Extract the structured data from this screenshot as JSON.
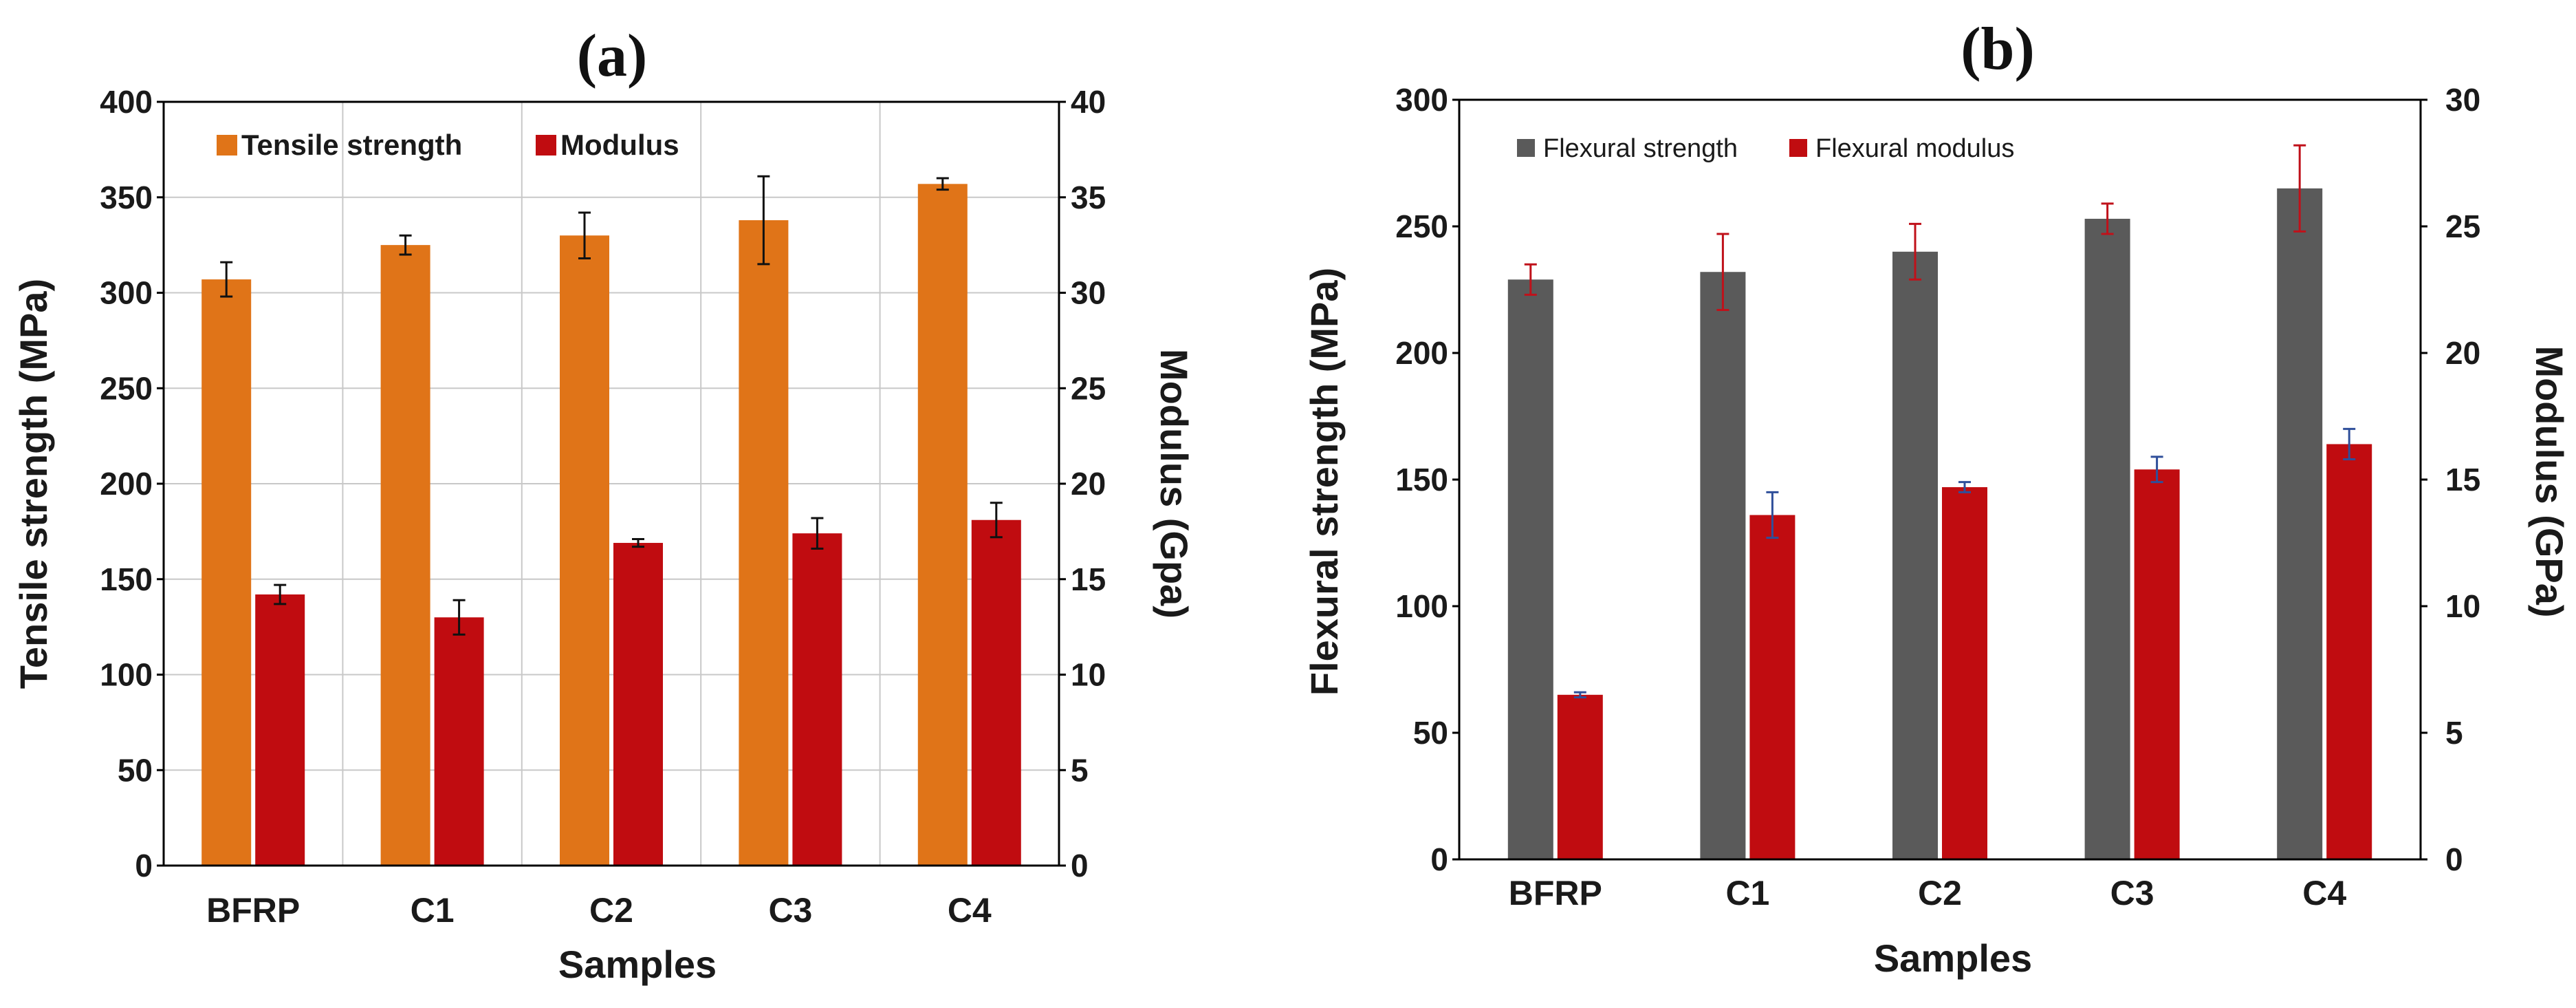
{
  "colors": {
    "tensile": "#e07418",
    "modulus_a": "#c00c10",
    "flexural_strength": "#5a5a5a",
    "flexural_modulus": "#c00c10",
    "err_a": "#111111",
    "err_b_strength": "#c0111a",
    "err_b_modulus": "#2f4f9a",
    "grid": "#c8c8c8",
    "axis": "#000000"
  },
  "chart_data": [
    {
      "type": "bar",
      "panel_label": "(a)",
      "categories": [
        "BFRP",
        "C1",
        "C2",
        "C3",
        "C4"
      ],
      "xlabel": "Samples",
      "ylabel_left": "Tensile strength (MPa)",
      "ylabel_right": "Modulus (Gpa)",
      "ylim_left": [
        0,
        400
      ],
      "ylim_right": [
        0,
        40
      ],
      "yticks_left": [
        "0",
        "50",
        "100",
        "150",
        "200",
        "250",
        "300",
        "350",
        "400"
      ],
      "yticks_right": [
        "0",
        "5",
        "10",
        "15",
        "20",
        "25",
        "30",
        "35",
        "40"
      ],
      "grid": true,
      "legend_position": "top-left",
      "series": [
        {
          "name": "Tensile strength",
          "axis": "left",
          "values": [
            307,
            325,
            330,
            338,
            357
          ],
          "errors": [
            9,
            5,
            12,
            23,
            3
          ]
        },
        {
          "name": "Modulus",
          "axis": "right",
          "values": [
            14.2,
            13.0,
            16.9,
            17.4,
            18.1
          ],
          "errors": [
            0.5,
            0.9,
            0.2,
            0.8,
            0.9
          ]
        }
      ]
    },
    {
      "type": "bar",
      "panel_label": "(b)",
      "categories": [
        "BFRP",
        "C1",
        "C2",
        "C3",
        "C4"
      ],
      "xlabel": "Samples",
      "ylabel_left": "Flexural strength (MPa)",
      "ylabel_right": "Modulus  (GPa)",
      "ylim_left": [
        0,
        300
      ],
      "ylim_right": [
        0,
        30
      ],
      "yticks_left": [
        "0",
        "50",
        "100",
        "150",
        "200",
        "250",
        "300"
      ],
      "yticks_right": [
        "0",
        "5",
        "10",
        "15",
        "20",
        "25",
        "30"
      ],
      "grid": false,
      "legend_position": "top-left",
      "series": [
        {
          "name": "Flexural strength",
          "axis": "left",
          "values": [
            229,
            232,
            240,
            253,
            265
          ],
          "errors": [
            6,
            15,
            11,
            6,
            17
          ]
        },
        {
          "name": "Flexural modulus",
          "axis": "right",
          "values": [
            6.5,
            13.6,
            14.7,
            15.4,
            16.4
          ],
          "errors": [
            0.1,
            0.9,
            0.2,
            0.5,
            0.6
          ]
        }
      ]
    }
  ]
}
